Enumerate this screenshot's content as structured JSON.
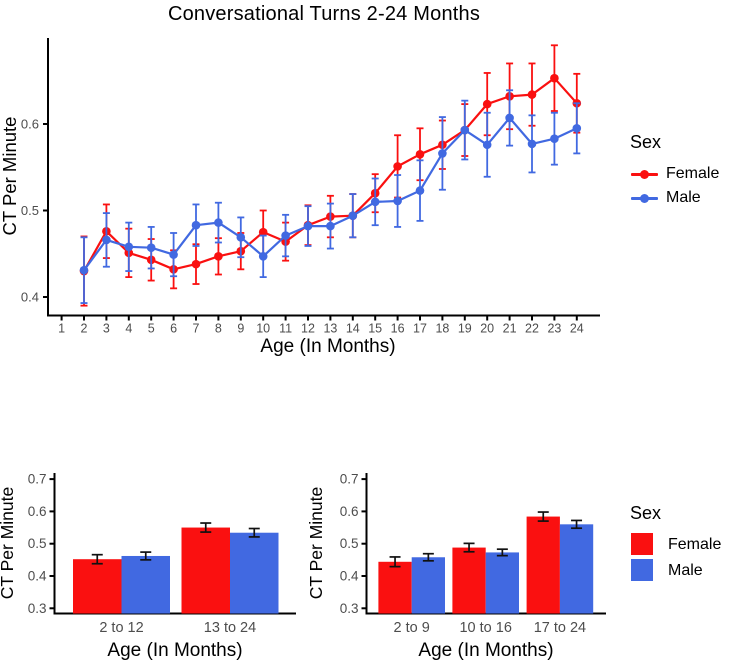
{
  "figure": {
    "title": "Conversational Turns 2-24 Months"
  },
  "colors": {
    "female": "#fa1010",
    "male": "#4169e1",
    "axis": "#000000",
    "tick_label": "#4d4d4d",
    "error_bar_dark": "#111111"
  },
  "legends": {
    "line": {
      "title": "Sex",
      "items": [
        {
          "label": "Female",
          "color": "female"
        },
        {
          "label": "Male",
          "color": "male"
        }
      ]
    },
    "bar": {
      "title": "Sex",
      "items": [
        {
          "label": "Female",
          "color": "female"
        },
        {
          "label": "Male",
          "color": "male"
        }
      ]
    }
  },
  "chart_data": [
    {
      "type": "line",
      "title": "Conversational Turns 2-24 Months",
      "xlabel": "Age (In Months)",
      "ylabel": "CT Per Minute",
      "x_ticks": [
        1,
        2,
        3,
        4,
        5,
        6,
        7,
        8,
        9,
        10,
        11,
        12,
        13,
        14,
        15,
        16,
        17,
        18,
        19,
        20,
        21,
        22,
        23,
        24
      ],
      "y_ticks": [
        0.4,
        0.5,
        0.6
      ],
      "xlim": [
        1,
        24
      ],
      "ylim": [
        0.378,
        0.7
      ],
      "grid": false,
      "legend_position": "right",
      "x": [
        2,
        3,
        4,
        5,
        6,
        7,
        8,
        9,
        10,
        11,
        12,
        13,
        14,
        15,
        16,
        17,
        18,
        19,
        20,
        21,
        22,
        23,
        24
      ],
      "series": [
        {
          "name": "Female",
          "color": "female",
          "values": [
            0.43,
            0.476,
            0.451,
            0.443,
            0.432,
            0.438,
            0.447,
            0.453,
            0.475,
            0.464,
            0.483,
            0.493,
            0.494,
            0.52,
            0.551,
            0.565,
            0.576,
            0.593,
            0.623,
            0.632,
            0.634,
            0.653,
            0.624
          ],
          "errors": [
            0.04,
            0.031,
            0.028,
            0.024,
            0.022,
            0.023,
            0.021,
            0.021,
            0.025,
            0.022,
            0.023,
            0.024,
            0.025,
            0.022,
            0.036,
            0.03,
            0.028,
            0.03,
            0.036,
            0.038,
            0.036,
            0.038,
            0.034
          ]
        },
        {
          "name": "Male",
          "color": "male",
          "values": [
            0.431,
            0.466,
            0.458,
            0.457,
            0.449,
            0.483,
            0.486,
            0.469,
            0.447,
            0.471,
            0.482,
            0.482,
            0.494,
            0.51,
            0.511,
            0.523,
            0.566,
            0.593,
            0.576,
            0.607,
            0.577,
            0.583,
            0.595
          ],
          "errors": [
            0.038,
            0.031,
            0.028,
            0.024,
            0.025,
            0.024,
            0.023,
            0.023,
            0.024,
            0.024,
            0.023,
            0.026,
            0.025,
            0.027,
            0.03,
            0.035,
            0.042,
            0.034,
            0.037,
            0.032,
            0.033,
            0.03,
            0.029
          ]
        }
      ]
    },
    {
      "type": "bar",
      "categories": [
        "2 to 12",
        "13 to 24"
      ],
      "xlabel": "Age (In Months)",
      "ylabel": "CT Per Minute",
      "y_ticks": [
        0.3,
        0.4,
        0.5,
        0.6,
        0.7
      ],
      "ylim": [
        0.28,
        0.72
      ],
      "grid": false,
      "series": [
        {
          "name": "Female",
          "color": "female",
          "values": [
            0.452,
            0.55
          ],
          "errors": [
            0.014,
            0.014
          ]
        },
        {
          "name": "Male",
          "color": "male",
          "values": [
            0.462,
            0.534
          ],
          "errors": [
            0.012,
            0.013
          ]
        }
      ]
    },
    {
      "type": "bar",
      "categories": [
        "2 to 9",
        "10 to 16",
        "17 to 24"
      ],
      "xlabel": "Age (In Months)",
      "ylabel": "CT Per Minute",
      "y_ticks": [
        0.3,
        0.4,
        0.5,
        0.6,
        0.7
      ],
      "ylim": [
        0.28,
        0.72
      ],
      "grid": false,
      "series": [
        {
          "name": "Female",
          "color": "female",
          "values": [
            0.444,
            0.488,
            0.584
          ],
          "errors": [
            0.015,
            0.013,
            0.014
          ]
        },
        {
          "name": "Male",
          "color": "male",
          "values": [
            0.458,
            0.473,
            0.56
          ],
          "errors": [
            0.011,
            0.01,
            0.012
          ]
        }
      ]
    }
  ]
}
